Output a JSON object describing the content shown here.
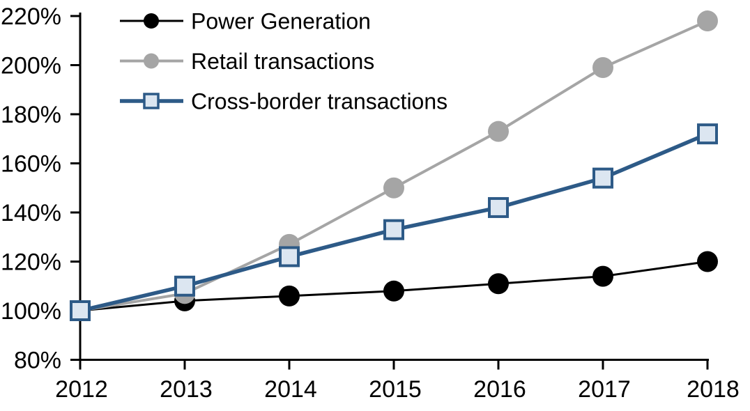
{
  "chart_data": {
    "type": "line",
    "title": "",
    "xlabel": "",
    "ylabel": "",
    "x": [
      "2012",
      "2013",
      "2014",
      "2015",
      "2016",
      "2017",
      "2018"
    ],
    "series": [
      {
        "name": "Power Generation",
        "values": [
          100,
          104,
          106,
          108,
          111,
          114,
          120
        ],
        "color": "#000000",
        "marker": "circle",
        "marker_fill": "#000000",
        "line_width": 3
      },
      {
        "name": "Retail transactions",
        "values": [
          100,
          107,
          127,
          150,
          173,
          199,
          218
        ],
        "color": "#a5a5a5",
        "marker": "circle",
        "marker_fill": "#a5a5a5",
        "line_width": 4
      },
      {
        "name": "Cross-border transactions",
        "values": [
          100,
          110,
          122,
          133,
          142,
          154,
          172
        ],
        "color": "#2d5a87",
        "marker": "square",
        "marker_fill": "#dce6f1",
        "line_width": 5.5
      }
    ],
    "ylim": [
      80,
      220
    ],
    "ytick_step": 20,
    "yticks": [
      "220%",
      "200%",
      "180%",
      "160%",
      "140%",
      "120%",
      "100%",
      "80%"
    ],
    "ytick_format": "percent",
    "grid": false,
    "legend_position": "top-left",
    "background_color": "#ffffff",
    "axis_color": "#000000",
    "text_color": "#000000"
  }
}
